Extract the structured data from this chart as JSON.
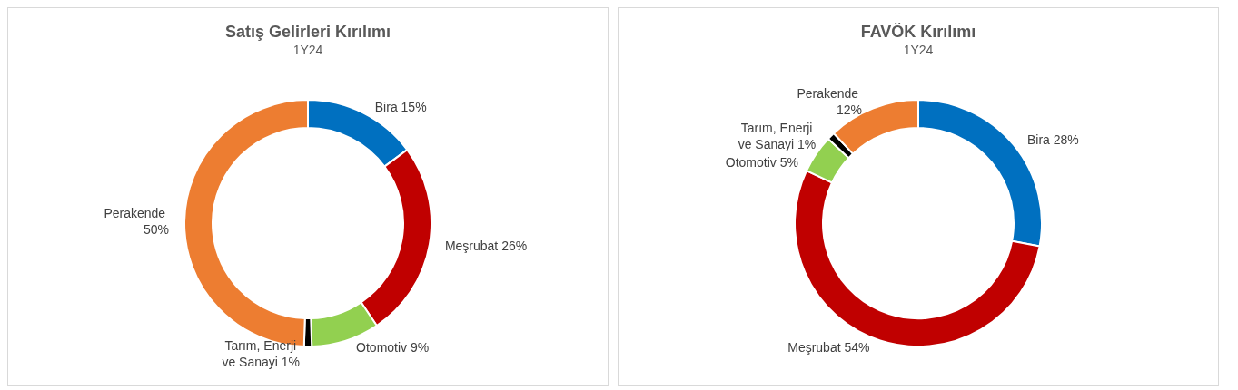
{
  "chart_data": [
    {
      "type": "donut",
      "title": "Satış Gelirleri Kırılımı",
      "subtitle": "1Y24",
      "categories": [
        "Bira",
        "Meşrubat",
        "Otomotiv",
        "Tarım, Enerji ve Sanayi",
        "Perakende"
      ],
      "values": [
        15,
        26,
        9,
        1,
        50
      ],
      "value_labels": [
        "15%",
        "26%",
        "9%",
        "1%",
        "50%"
      ],
      "colors": [
        "#0070c0",
        "#c00000",
        "#92d050",
        "#000000",
        "#ed7d31"
      ],
      "legend": false
    },
    {
      "type": "donut",
      "title": "FAVÖK Kırılımı",
      "subtitle": "1Y24",
      "categories": [
        "Bira",
        "Meşrubat",
        "Otomotiv",
        "Tarım, Enerji ve Sanayi",
        "Perakende"
      ],
      "values": [
        28,
        54,
        5,
        1,
        12
      ],
      "value_labels": [
        "28%",
        "54%",
        "5%",
        "1%",
        "12%"
      ],
      "colors": [
        "#0070c0",
        "#c00000",
        "#92d050",
        "#000000",
        "#ed7d31"
      ],
      "legend": false
    }
  ]
}
